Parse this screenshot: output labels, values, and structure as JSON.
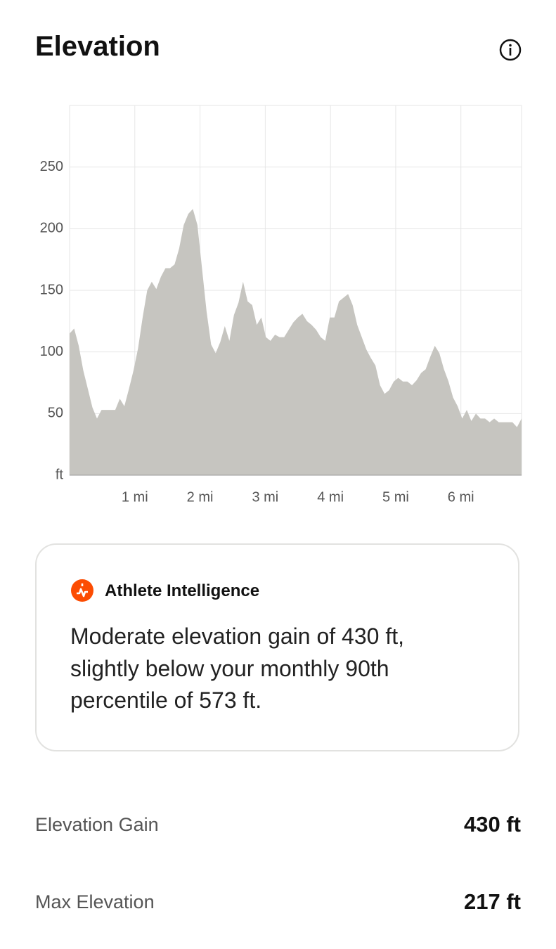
{
  "header": {
    "title": "Elevation"
  },
  "chart_data": {
    "type": "area",
    "color": "#c6c5c0",
    "grid": true,
    "xlim": [
      0,
      6.93
    ],
    "xticks": [
      {
        "value": 1,
        "label": "1 mi"
      },
      {
        "value": 2,
        "label": "2 mi"
      },
      {
        "value": 3,
        "label": "3 mi"
      },
      {
        "value": 4,
        "label": "4 mi"
      },
      {
        "value": 5,
        "label": "5 mi"
      },
      {
        "value": 6,
        "label": "6 mi"
      }
    ],
    "ylim": [
      0,
      300
    ],
    "yticks": [
      {
        "value": 0,
        "label": "ft"
      },
      50,
      100,
      150,
      200,
      250
    ],
    "x": [
      0,
      0.07,
      0.14,
      0.21,
      0.28,
      0.35,
      0.42,
      0.49,
      0.56,
      0.63,
      0.7,
      0.77,
      0.84,
      0.91,
      0.98,
      1.05,
      1.12,
      1.19,
      1.26,
      1.33,
      1.4,
      1.47,
      1.54,
      1.61,
      1.68,
      1.75,
      1.82,
      1.89,
      1.96,
      2.03,
      2.1,
      2.17,
      2.24,
      2.31,
      2.38,
      2.45,
      2.52,
      2.59,
      2.66,
      2.73,
      2.8,
      2.87,
      2.94,
      3.01,
      3.08,
      3.15,
      3.22,
      3.29,
      3.36,
      3.43,
      3.5,
      3.57,
      3.64,
      3.71,
      3.78,
      3.85,
      3.92,
      3.99,
      4.06,
      4.13,
      4.2,
      4.27,
      4.34,
      4.41,
      4.48,
      4.55,
      4.62,
      4.69,
      4.76,
      4.83,
      4.9,
      4.97,
      5.04,
      5.11,
      5.18,
      5.25,
      5.32,
      5.39,
      5.46,
      5.53,
      5.6,
      5.67,
      5.74,
      5.81,
      5.88,
      5.95,
      6.02,
      6.09,
      6.16,
      6.23,
      6.3,
      6.37,
      6.44,
      6.51,
      6.58,
      6.65,
      6.72,
      6.79,
      6.86,
      6.93
    ],
    "values": [
      115,
      119,
      105,
      85,
      70,
      55,
      46,
      53,
      53,
      53,
      53,
      62,
      56,
      70,
      85,
      103,
      128,
      150,
      157,
      151,
      161,
      168,
      168,
      171,
      184,
      203,
      212,
      216,
      203,
      168,
      133,
      106,
      99,
      108,
      121,
      109,
      130,
      140,
      157,
      141,
      138,
      122,
      128,
      112,
      109,
      114,
      112,
      112,
      118,
      124,
      128,
      131,
      125,
      122,
      118,
      112,
      109,
      128,
      128,
      141,
      144,
      147,
      138,
      122,
      112,
      102,
      95,
      89,
      73,
      66,
      69,
      76,
      79,
      76,
      76,
      73,
      77,
      83,
      86,
      96,
      105,
      99,
      86,
      76,
      63,
      56,
      46,
      53,
      44,
      50,
      46,
      46,
      43,
      46,
      43,
      43,
      43,
      43,
      39,
      46
    ]
  },
  "insight": {
    "title": "Athlete Intelligence",
    "lines": [
      "Moderate elevation gain of 430 ft,",
      "slightly below your monthly 90th",
      "percentile of 573 ft."
    ]
  },
  "stats": [
    {
      "label": "Elevation Gain",
      "value": "430 ft"
    },
    {
      "label": "Max Elevation",
      "value": "217 ft"
    }
  ]
}
